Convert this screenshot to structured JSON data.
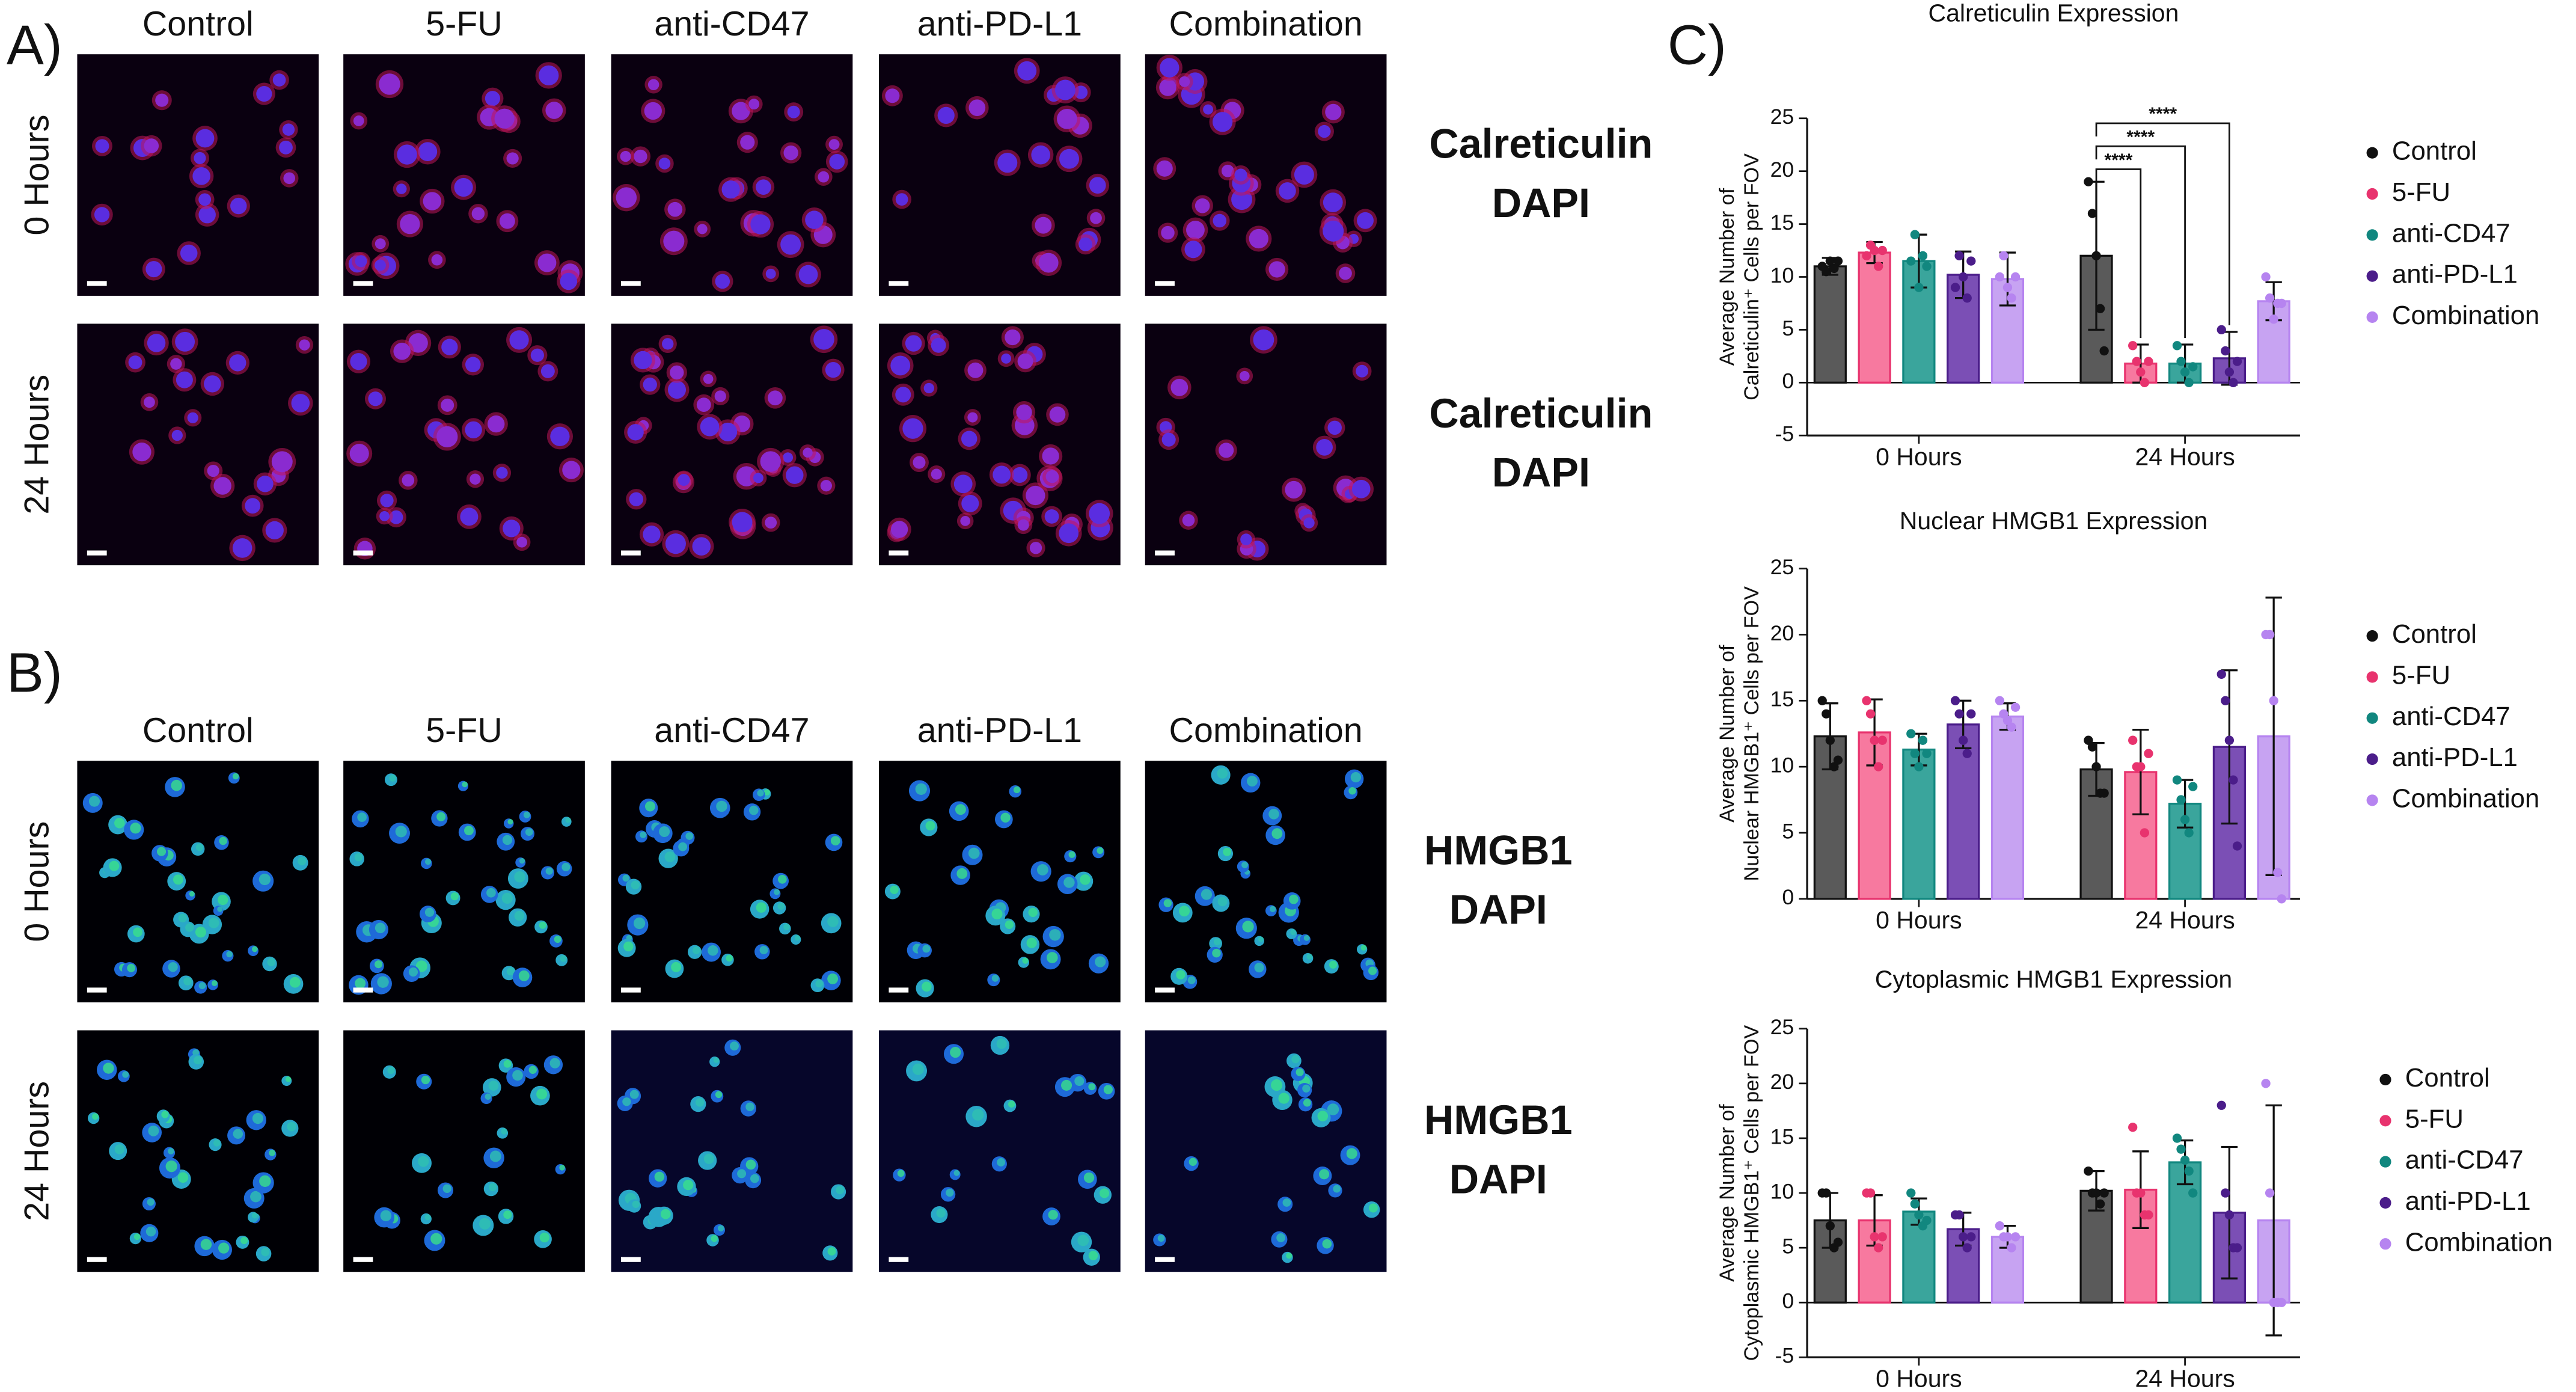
{
  "panels": [
    {
      "label": "A)",
      "columns": [
        "Control",
        "5-FU",
        "anti-CD47",
        "anti-PD-L1",
        "Combination"
      ],
      "rows": [
        "0 Hours",
        "24 Hours"
      ],
      "stains": [
        {
          "text": "Calreticulin",
          "color": "#e8191e"
        },
        {
          "text": "DAPI",
          "color": "#1f5ce0"
        }
      ]
    },
    {
      "label": "B)",
      "columns": [
        "Control",
        "5-FU",
        "anti-CD47",
        "anti-PD-L1",
        "Combination"
      ],
      "rows": [
        "0 Hours",
        "24 Hours"
      ],
      "stains": [
        {
          "text": "HMGB1",
          "color": "#22d06a"
        },
        {
          "text": "DAPI",
          "color": "#1f7ee0"
        }
      ]
    }
  ],
  "panel_c_label": "C)",
  "chart_data": [
    {
      "type": "bar",
      "title": "Calreticulin Expression",
      "ylabel": [
        "Average Number of",
        "Calreticulin⁺ Cells per FOV"
      ],
      "categories": [
        "0 Hours",
        "24 Hours"
      ],
      "ylim": [
        -5,
        25
      ],
      "yticks": [
        -5,
        0,
        5,
        10,
        15,
        20,
        25
      ],
      "annotations": [
        "****",
        "****",
        "****"
      ],
      "series": [
        {
          "name": "Control",
          "color": "#5a5a5a",
          "point_color": "#111111",
          "values": [
            11,
            12
          ],
          "errors": [
            0.8,
            7
          ],
          "points": [
            [
              11,
              10.5,
              11.5,
              10.8,
              11.5
            ],
            [
              19,
              16,
              12,
              7,
              3
            ]
          ]
        },
        {
          "name": "5-FU",
          "color": "#f7799f",
          "point_color": "#e8336e",
          "values": [
            12.3,
            1.8
          ],
          "errors": [
            1,
            1.8
          ],
          "points": [
            [
              12,
              13,
              12.5,
              11,
              12.5
            ],
            [
              3.5,
              2,
              1,
              0,
              2
            ]
          ]
        },
        {
          "name": "anti-CD47",
          "color": "#3aa59c",
          "point_color": "#11877f",
          "values": [
            11.5,
            1.8
          ],
          "errors": [
            2.5,
            1.8
          ],
          "points": [
            [
              11.5,
              14,
              9,
              12,
              11
            ],
            [
              3.5,
              2,
              1,
              0,
              1.5
            ]
          ]
        },
        {
          "name": "anti-PD-L1",
          "color": "#7b4fb5",
          "point_color": "#4b1d8a",
          "values": [
            10.2,
            2.3
          ],
          "errors": [
            2.2,
            2.5
          ],
          "points": [
            [
              9,
              12,
              10,
              8,
              11.5
            ],
            [
              5,
              3,
              1,
              0,
              2
            ]
          ]
        },
        {
          "name": "Combination",
          "color": "#c7a3f2",
          "point_color": "#b684f0",
          "values": [
            9.8,
            7.7
          ],
          "errors": [
            2.5,
            1.8
          ],
          "points": [
            [
              10,
              12,
              9,
              8,
              10
            ],
            [
              10,
              8,
              6,
              7.5,
              7.5
            ]
          ]
        }
      ]
    },
    {
      "type": "bar",
      "title": "Nuclear HMGB1 Expression",
      "ylabel": [
        "Average Number of",
        "Nuclear HMGB1⁺ Cells per FOV"
      ],
      "categories": [
        "0 Hours",
        "24 Hours"
      ],
      "ylim": [
        0,
        25
      ],
      "yticks": [
        0,
        5,
        10,
        15,
        20,
        25
      ],
      "series": [
        {
          "name": "Control",
          "color": "#5a5a5a",
          "point_color": "#111111",
          "values": [
            12.3,
            9.8
          ],
          "errors": [
            2.5,
            2
          ],
          "points": [
            [
              15,
              14,
              12,
              10,
              10.5
            ],
            [
              12,
              11.5,
              10,
              8,
              8
            ]
          ]
        },
        {
          "name": "5-FU",
          "color": "#f7799f",
          "point_color": "#e8336e",
          "values": [
            12.6,
            9.6
          ],
          "errors": [
            2.5,
            3.2
          ],
          "points": [
            [
              15,
              14,
              12,
              10,
              12
            ],
            [
              12,
              10,
              10,
              5,
              11
            ]
          ]
        },
        {
          "name": "anti-CD47",
          "color": "#3aa59c",
          "point_color": "#11877f",
          "values": [
            11.3,
            7.2
          ],
          "errors": [
            1.2,
            1.8
          ],
          "points": [
            [
              12.5,
              11,
              10,
              12,
              11
            ],
            [
              9,
              7.5,
              6,
              5,
              8.5
            ]
          ]
        },
        {
          "name": "anti-PD-L1",
          "color": "#7b4fb5",
          "point_color": "#4b1d8a",
          "values": [
            13.2,
            11.5
          ],
          "errors": [
            1.8,
            5.8
          ],
          "points": [
            [
              15,
              14,
              12,
              11,
              14
            ],
            [
              17,
              15,
              12,
              9,
              4
            ]
          ]
        },
        {
          "name": "Combination",
          "color": "#c7a3f2",
          "point_color": "#b684f0",
          "values": [
            13.8,
            12.3
          ],
          "errors": [
            1,
            10.5
          ],
          "points": [
            [
              15,
              14,
              13.5,
              13,
              14.5
            ],
            [
              20,
              20,
              15,
              2,
              0
            ]
          ]
        }
      ]
    },
    {
      "type": "bar",
      "title": "Cytoplasmic HMGB1 Expression",
      "ylabel": [
        "Average Number of",
        "Cytoplasmic HMGB1⁺ Cells per FOV"
      ],
      "categories": [
        "0 Hours",
        "24 Hours"
      ],
      "ylim": [
        -5,
        25
      ],
      "yticks": [
        -5,
        0,
        5,
        10,
        15,
        20,
        25
      ],
      "series": [
        {
          "name": "Control",
          "color": "#5a5a5a",
          "point_color": "#111111",
          "values": [
            7.5,
            10.2
          ],
          "errors": [
            2.5,
            1.8
          ],
          "points": [
            [
              10,
              10,
              7,
              5,
              5.5
            ],
            [
              12,
              10,
              10,
              9,
              10
            ]
          ]
        },
        {
          "name": "5-FU",
          "color": "#f7799f",
          "point_color": "#e8336e",
          "values": [
            7.5,
            10.3
          ],
          "errors": [
            2.3,
            3.5
          ],
          "points": [
            [
              10,
              10,
              6,
              5,
              6
            ],
            [
              16,
              10,
              10,
              8,
              8
            ]
          ]
        },
        {
          "name": "anti-CD47",
          "color": "#3aa59c",
          "point_color": "#11877f",
          "values": [
            8.3,
            12.8
          ],
          "errors": [
            1.2,
            2
          ],
          "points": [
            [
              10,
              9,
              8,
              7,
              7.5
            ],
            [
              15,
              14,
              13,
              12,
              10
            ]
          ]
        },
        {
          "name": "anti-PD-L1",
          "color": "#7b4fb5",
          "point_color": "#4b1d8a",
          "values": [
            6.7,
            8.2
          ],
          "errors": [
            1.5,
            6
          ],
          "points": [
            [
              8,
              8,
              6,
              5,
              6
            ],
            [
              18,
              10,
              8,
              5,
              5
            ]
          ]
        },
        {
          "name": "Combination",
          "color": "#c7a3f2",
          "point_color": "#b684f0",
          "values": [
            6,
            7.5
          ],
          "errors": [
            1,
            10.5
          ],
          "points": [
            [
              7,
              6,
              6,
              5,
              6
            ],
            [
              20,
              10,
              0,
              0,
              0
            ]
          ]
        }
      ]
    }
  ]
}
